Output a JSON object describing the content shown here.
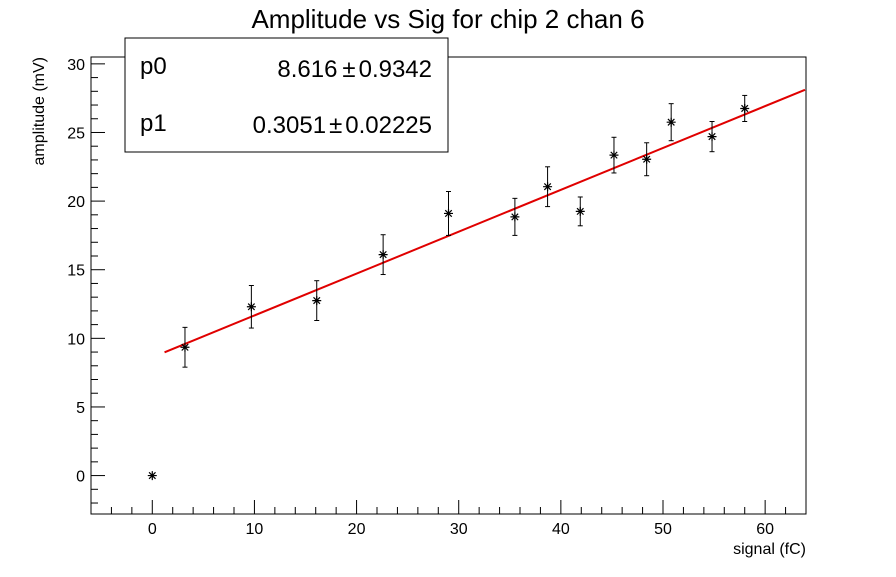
{
  "chart_data": {
    "type": "scatter",
    "title": "Amplitude vs Sig for chip 2 chan 6",
    "xlabel": "signal (fC)",
    "ylabel": "amplitude (mV)",
    "xlim": [
      -6,
      64
    ],
    "ylim": [
      -2.8,
      30.5
    ],
    "x_ticks": [
      0,
      10,
      20,
      30,
      40,
      50,
      60
    ],
    "y_ticks": [
      0,
      5,
      10,
      15,
      20,
      25,
      30
    ],
    "grid": false,
    "legend": "none",
    "series": [
      {
        "marker": "star",
        "color": "#000000",
        "points": [
          {
            "x": 0.0,
            "y": 0.0,
            "yerr": 0
          },
          {
            "x": 3.2,
            "y": 9.35,
            "yerr": 1.45
          },
          {
            "x": 9.7,
            "y": 12.3,
            "yerr": 1.55
          },
          {
            "x": 16.1,
            "y": 12.75,
            "yerr": 1.45
          },
          {
            "x": 22.6,
            "y": 16.1,
            "yerr": 1.45
          },
          {
            "x": 29.0,
            "y": 19.1,
            "yerr": 1.6
          },
          {
            "x": 35.5,
            "y": 18.85,
            "yerr": 1.35
          },
          {
            "x": 38.7,
            "y": 21.05,
            "yerr": 1.45
          },
          {
            "x": 41.9,
            "y": 19.25,
            "yerr": 1.05
          },
          {
            "x": 45.2,
            "y": 23.35,
            "yerr": 1.3
          },
          {
            "x": 48.4,
            "y": 23.05,
            "yerr": 1.2
          },
          {
            "x": 50.8,
            "y": 25.75,
            "yerr": 1.35
          },
          {
            "x": 54.8,
            "y": 24.7,
            "yerr": 1.1
          },
          {
            "x": 58.0,
            "y": 26.75,
            "yerr": 0.95
          }
        ]
      }
    ],
    "fit": {
      "color": "#e00000",
      "p0": 8.616,
      "p1": 0.3051,
      "x_range": [
        1.2,
        63.9
      ]
    }
  },
  "stats_box": {
    "rows": [
      {
        "name": "p0",
        "value": "8.616",
        "pm": "±",
        "error": "0.9342"
      },
      {
        "name": "p1",
        "value": "0.3051",
        "pm": "±",
        "error": "0.02225"
      }
    ]
  }
}
